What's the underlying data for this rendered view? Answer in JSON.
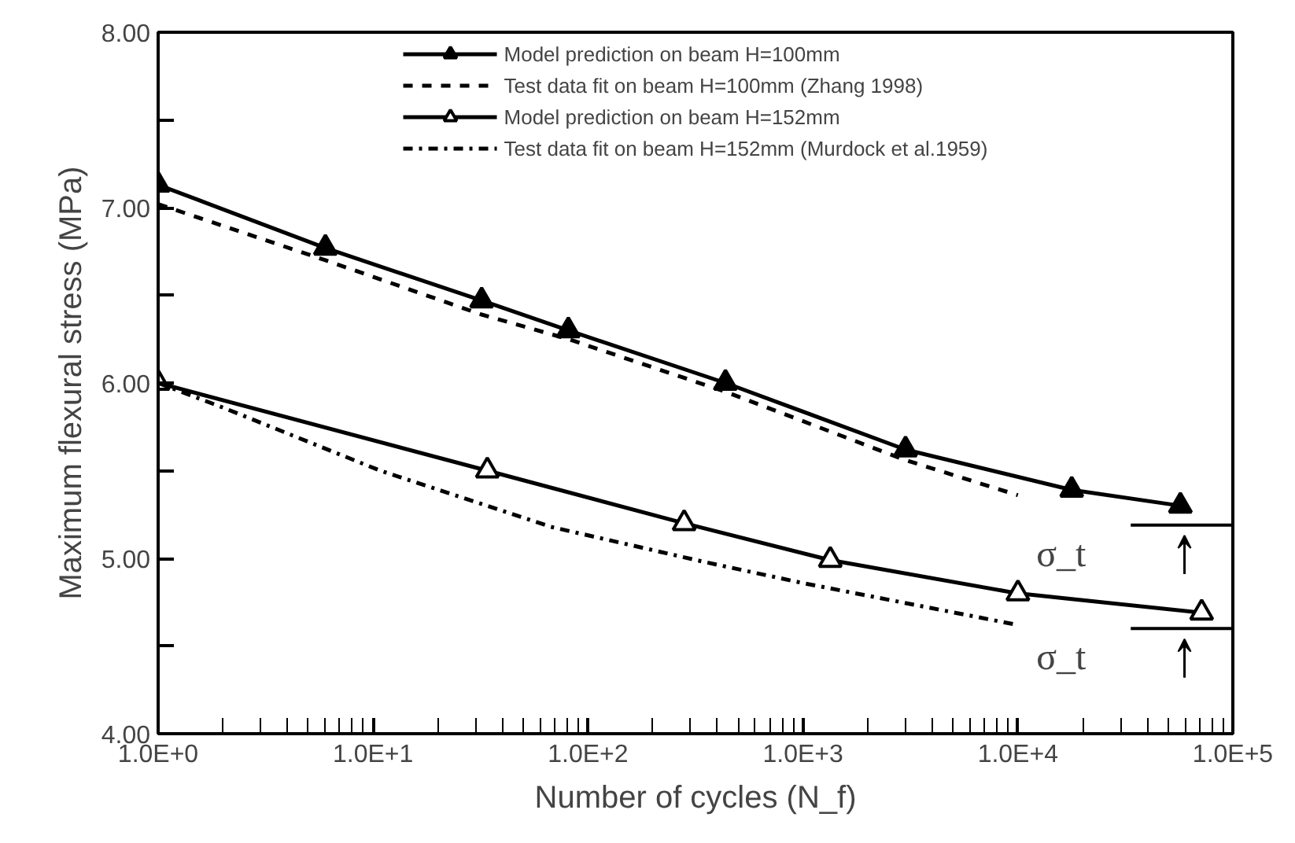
{
  "chart_data": {
    "type": "line",
    "xlabel": "Number of cycles (N_f)",
    "ylabel": "Maximum flexural stress (MPa)",
    "log": "x",
    "xlim": [
      1,
      100000
    ],
    "ylim": [
      4,
      8
    ],
    "xticks": [
      {
        "value": 1,
        "label": "1.0E+0"
      },
      {
        "value": 10,
        "label": "1.0E+1"
      },
      {
        "value": 100,
        "label": "1.0E+2"
      },
      {
        "value": 1000,
        "label": "1.0E+3"
      },
      {
        "value": 10000,
        "label": "1.0E+4"
      },
      {
        "value": 100000,
        "label": "1.0E+5"
      }
    ],
    "yticks": [
      {
        "value": 4,
        "label": "4.00"
      },
      {
        "value": 4.5,
        "label": null
      },
      {
        "value": 5,
        "label": "5.00"
      },
      {
        "value": 5.5,
        "label": null
      },
      {
        "value": 6,
        "label": "6.00"
      },
      {
        "value": 6.5,
        "label": null
      },
      {
        "value": 7,
        "label": "7.00"
      },
      {
        "value": 7.5,
        "label": null
      },
      {
        "value": 8,
        "label": "8.00"
      }
    ],
    "grid": false,
    "legend": "top",
    "series": [
      {
        "name": "Model prediction on beam H=100mm",
        "color": "#000000",
        "marker": "triangle",
        "line_style": "solid",
        "x": [
          1,
          6,
          32,
          81,
          436,
          3000,
          17800,
          57000
        ],
        "values": [
          7.13,
          6.77,
          6.47,
          6.3,
          6.0,
          5.62,
          5.39,
          5.3
        ]
      },
      {
        "name": "Test data fit on beam H=100mm (Zhang 1998)",
        "color": "#000000",
        "marker": "none",
        "line_style": "dashed",
        "x": [
          1,
          6,
          32,
          81,
          436,
          3000,
          10000
        ],
        "values": [
          7.02,
          6.7,
          6.39,
          6.25,
          5.95,
          5.56,
          5.36
        ]
      },
      {
        "name": "Model prediction on beam H=152mm",
        "color": "#000000",
        "marker": "triangle_open",
        "line_style": "solid",
        "x": [
          1,
          34,
          280,
          1340,
          10000,
          71600
        ],
        "values": [
          6.0,
          5.5,
          5.2,
          4.99,
          4.8,
          4.69
        ]
      },
      {
        "name": "Test data fit on beam H=152mm (Murdock et al.1959)",
        "color": "#000000",
        "marker": "none",
        "line_style": "dashdot",
        "x": [
          1,
          2,
          10.8,
          67,
          346,
          990,
          10000
        ],
        "values": [
          6.0,
          5.86,
          5.5,
          5.18,
          4.98,
          4.86,
          4.62
        ]
      }
    ],
    "ref_lines": [
      {
        "axis": "y",
        "value": 5.19,
        "label": "σ_t"
      },
      {
        "axis": "y",
        "value": 4.6,
        "label": "σ_t"
      }
    ]
  }
}
